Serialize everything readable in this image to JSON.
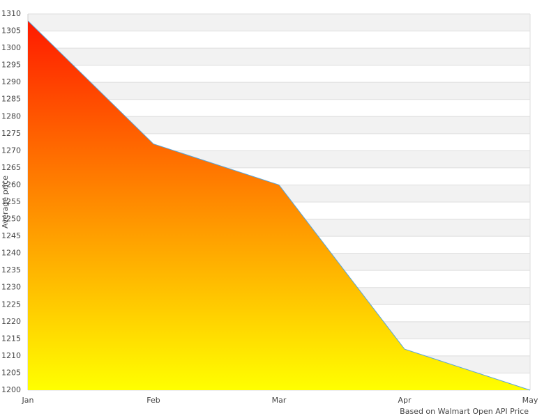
{
  "chart_data": {
    "type": "area",
    "y_label": "Average price",
    "footer": "Based on Walmart Open API Price",
    "categories": [
      "Jan",
      "Feb",
      "Mar",
      "Apr",
      "May"
    ],
    "values": [
      1308,
      1272,
      1260,
      1212,
      1200
    ],
    "line_color": "#5aa5d8",
    "gradient": [
      "#ff1a00",
      "#ffff00"
    ],
    "ylim": [
      1200,
      1310
    ],
    "yticks": [
      1200,
      1205,
      1210,
      1215,
      1220,
      1225,
      1230,
      1235,
      1240,
      1245,
      1250,
      1255,
      1260,
      1265,
      1270,
      1275,
      1280,
      1285,
      1290,
      1295,
      1300,
      1305,
      1310
    ],
    "grid": true
  }
}
